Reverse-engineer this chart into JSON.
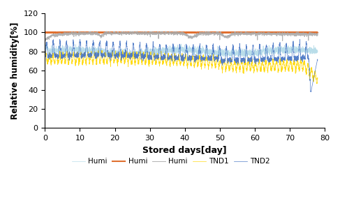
{
  "title": "",
  "xlabel": "Stored days[day]",
  "ylabel": "Relative humidity[%]",
  "xlim": [
    0,
    80
  ],
  "ylim": [
    0,
    120
  ],
  "xticks": [
    0,
    10,
    20,
    30,
    40,
    50,
    60,
    70,
    80
  ],
  "yticks": [
    0,
    20,
    40,
    60,
    80,
    100,
    120
  ],
  "legend_labels": [
    "Humi",
    "Humi",
    "Humi",
    "TND1",
    "TND2"
  ],
  "colors": {
    "humi1": "#ADD8E6",
    "humi2": "#E07030",
    "humi3": "#AAAAAA",
    "tnd1": "#FFD700",
    "tnd2": "#4472C4"
  },
  "n_points": 3000,
  "total_days": 78,
  "spike_freq_tnd2": 1.0,
  "spike_freq_tnd1": 0.8
}
